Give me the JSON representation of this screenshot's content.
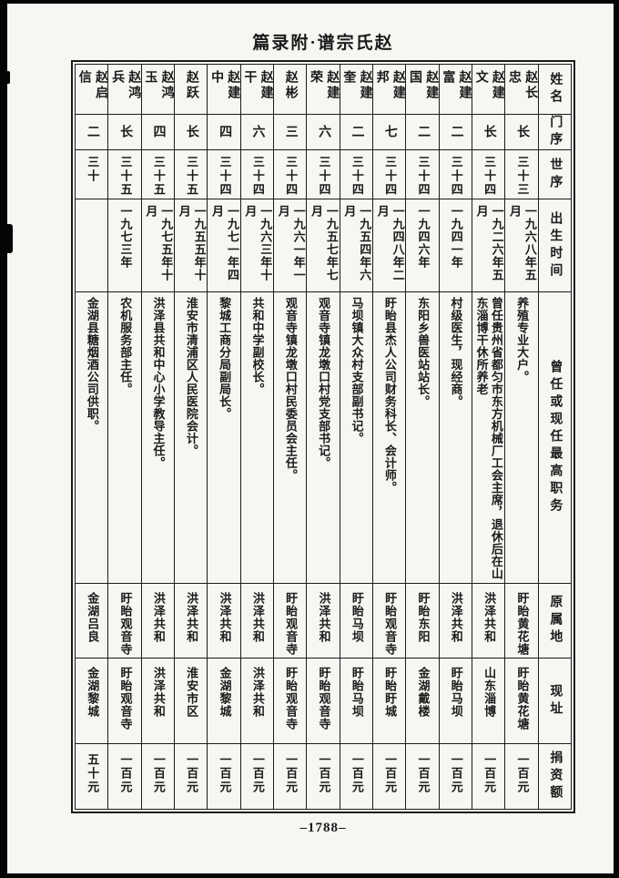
{
  "page": {
    "title": "篇录附·谱宗氏赵",
    "page_number": "–1788–"
  },
  "colors": {
    "ink": "#1b1b1b",
    "paper": "#f7f6f2",
    "scan_edge": "#050505"
  },
  "table": {
    "reading_direction": "right-to-left, vertical text",
    "header_labels": [
      "姓名",
      "门序",
      "世序",
      "出生时间",
      "曾任或现任最高职务",
      "原属地",
      "现址",
      "捐资额"
    ],
    "people": [
      {
        "name": "赵长忠",
        "branch": "长",
        "generation": "三十三",
        "birth": "一九六八年五月",
        "position": "养殖专业大户。",
        "origin": "盱眙黄花塘",
        "address": "盱眙黄花塘",
        "donation": "一百元"
      },
      {
        "name": "赵建文",
        "branch": "长",
        "generation": "三十四",
        "birth": "一九二六年五月",
        "position": "曾任贵州省都匀市东方机械厂工会主席，退休后在山东淄博干休所养老",
        "origin": "洪泽共和",
        "address": "山东淄博",
        "donation": "一百元"
      },
      {
        "name": "赵建富",
        "branch": "二",
        "generation": "三十四",
        "birth": "一九四一年",
        "position": "村级医生，现经商。",
        "origin": "洪泽共和",
        "address": "盱眙马坝",
        "donation": "一百元"
      },
      {
        "name": "赵建国",
        "branch": "二",
        "generation": "三十四",
        "birth": "一九四六年",
        "position": "东阳乡兽医站站长。",
        "origin": "盱眙东阳",
        "address": "金湖戴楼",
        "donation": "一百元"
      },
      {
        "name": "赵建邦",
        "branch": "七",
        "generation": "三十四",
        "birth": "一九四八年二月",
        "position": "盱眙县杰人公司财务科长、会计师。",
        "origin": "盱眙观音寺",
        "address": "盱眙盱城",
        "donation": "一百元"
      },
      {
        "name": "赵建奎",
        "branch": "二",
        "generation": "三十四",
        "birth": "一九五四年六月",
        "position": "马坝镇大众村支部副书记。",
        "origin": "盱眙马坝",
        "address": "盱眙马坝",
        "donation": "一百元"
      },
      {
        "name": "赵建荣",
        "branch": "六",
        "generation": "三十四",
        "birth": "一九五七年七月",
        "position": "观音寺镇龙墩口村党支部书记。",
        "origin": "洪泽共和",
        "address": "盱眙观音寺",
        "donation": "一百元"
      },
      {
        "name": "赵彬",
        "branch": "三",
        "generation": "三十四",
        "birth": "一九六一年一月",
        "position": "观音寺镇龙墩口村民委员会主任。",
        "origin": "盱眙观音寺",
        "address": "盱眙观音寺",
        "donation": "一百元"
      },
      {
        "name": "赵建干",
        "branch": "六",
        "generation": "三十四",
        "birth": "一九六三年十月",
        "position": "共和中学副校长。",
        "origin": "洪泽共和",
        "address": "洪泽共和",
        "donation": "一百元"
      },
      {
        "name": "赵建中",
        "branch": "四",
        "generation": "三十四",
        "birth": "一九七一年四月",
        "position": "黎城工商分局副局长。",
        "origin": "洪泽共和",
        "address": "金湖黎城",
        "donation": "一百元"
      },
      {
        "name": "赵跃",
        "branch": "长",
        "generation": "三十五",
        "birth": "一九五五年十月",
        "position": "淮安市清浦区人民医院会计。",
        "origin": "洪泽共和",
        "address": "淮安市区",
        "donation": "一百元"
      },
      {
        "name": "赵鸿玉",
        "branch": "四",
        "generation": "三十五",
        "birth": "一九七五年十月",
        "position": "洪泽县共和中心小学教导主任。",
        "origin": "洪泽共和",
        "address": "洪泽共和",
        "donation": "一百元"
      },
      {
        "name": "赵鸿兵",
        "branch": "长",
        "generation": "三十五",
        "birth": "一九七三年",
        "position": "农机服务部主任。",
        "origin": "盱眙观音寺",
        "address": "盱眙观音寺",
        "donation": "一百元"
      },
      {
        "name": "赵启信",
        "branch": "二",
        "generation": "三十",
        "birth": "",
        "position": "金湖县糖烟酒公司供职。",
        "origin": "金湖吕良",
        "address": "金湖黎城",
        "donation": "五十元"
      }
    ]
  }
}
